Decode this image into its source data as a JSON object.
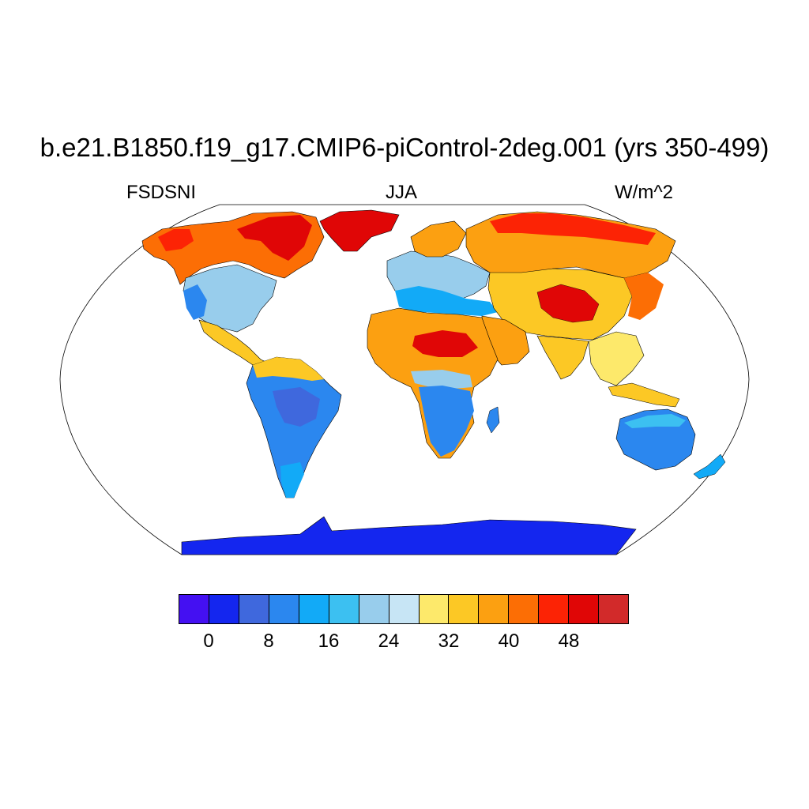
{
  "header": {
    "title": "b.e21.B1850.f19_g17.CMIP6-piControl-2deg.001 (yrs 350-499)",
    "left_label": "FSDSNI",
    "center_label": "JJA",
    "right_label": "W/m^2"
  },
  "map": {
    "projection": "robinson",
    "variable": "FSDSNI",
    "season": "JJA",
    "units": "W/m^2",
    "coastlines": true,
    "ocean_masked": true
  },
  "colorbar": {
    "colors": [
      "#4410f2",
      "#1426ef",
      "#3f68dd",
      "#2b87ef",
      "#12aaf7",
      "#3cc0f1",
      "#98cdec",
      "#c7e5f5",
      "#fde96b",
      "#fcc825",
      "#fca011",
      "#fc6e05",
      "#fc2305",
      "#e00606",
      "#d22a2a"
    ],
    "tick_labels": [
      "0",
      "8",
      "16",
      "24",
      "32",
      "40",
      "48"
    ]
  }
}
